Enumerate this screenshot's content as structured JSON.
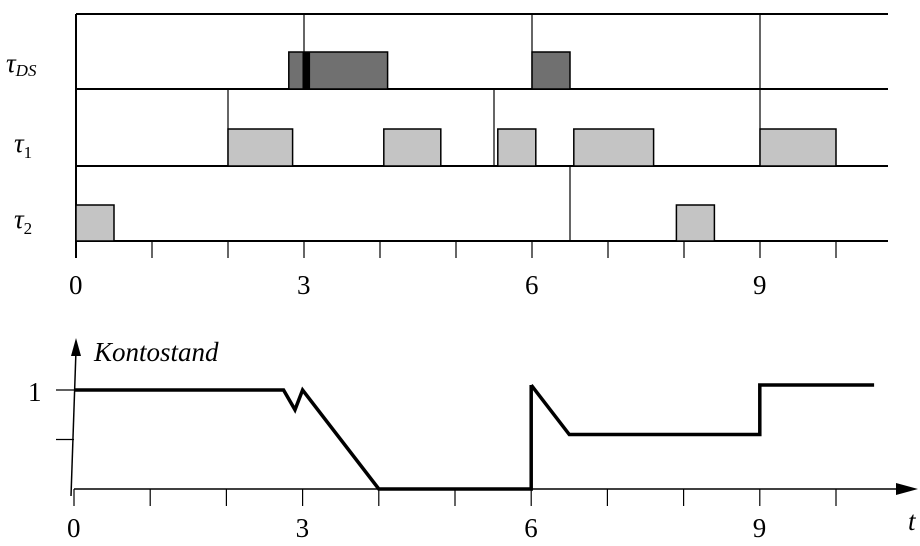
{
  "gantt": {
    "rows": [
      {
        "name": "τ",
        "sub": "DS",
        "color": "#707070",
        "blocks": [
          [
            2.8,
            4.1
          ],
          [
            6.0,
            6.5
          ]
        ],
        "arrivals": [
          3.0,
          6.0,
          9.0
        ],
        "marks": [
          [
            2.98,
            3.08
          ]
        ]
      },
      {
        "name": "τ",
        "sub": "1",
        "color": "#c4c4c4",
        "blocks": [
          [
            2.0,
            2.85
          ],
          [
            4.05,
            4.8
          ],
          [
            5.55,
            6.05
          ],
          [
            6.55,
            7.6
          ],
          [
            9.0,
            10.0
          ]
        ],
        "arrivals": [
          2.0,
          5.5,
          9.0
        ]
      },
      {
        "name": "τ",
        "sub": "2",
        "color": "#c4c4c4",
        "blocks": [
          [
            0.0,
            0.5
          ],
          [
            7.9,
            8.4
          ]
        ],
        "arrivals": [
          6.5
        ]
      }
    ],
    "ticks": [
      0,
      1,
      2,
      3,
      4,
      5,
      6,
      7,
      8,
      9,
      10
    ],
    "tick_labels": [
      {
        "value": 0,
        "text": "0"
      },
      {
        "value": 3,
        "text": "3"
      },
      {
        "value": 6,
        "text": "6"
      },
      {
        "value": 9,
        "text": "9"
      }
    ]
  },
  "balance": {
    "ylabel": "Kontostand",
    "xlabel": "t",
    "y_tick_label": "1",
    "y_ticks": [
      1.0,
      0.5
    ],
    "tick_labels": [
      {
        "value": 0,
        "text": "0"
      },
      {
        "value": 3,
        "text": "3"
      },
      {
        "value": 6,
        "text": "6"
      },
      {
        "value": 9,
        "text": "9"
      }
    ],
    "ticks": [
      0,
      1,
      2,
      3,
      4,
      5,
      6,
      7,
      8,
      9,
      10
    ],
    "segments": [
      [
        [
          0,
          1
        ],
        [
          2.75,
          1
        ],
        [
          2.9,
          0.8
        ],
        [
          3.0,
          1
        ],
        [
          4.0,
          0
        ],
        [
          6.0,
          0
        ],
        [
          6.0,
          1.05
        ]
      ],
      [
        [
          6.0,
          1.05
        ],
        [
          6.5,
          0.55
        ],
        [
          9.0,
          0.55
        ],
        [
          9.0,
          1.05
        ],
        [
          10.5,
          1.05
        ]
      ]
    ]
  }
}
